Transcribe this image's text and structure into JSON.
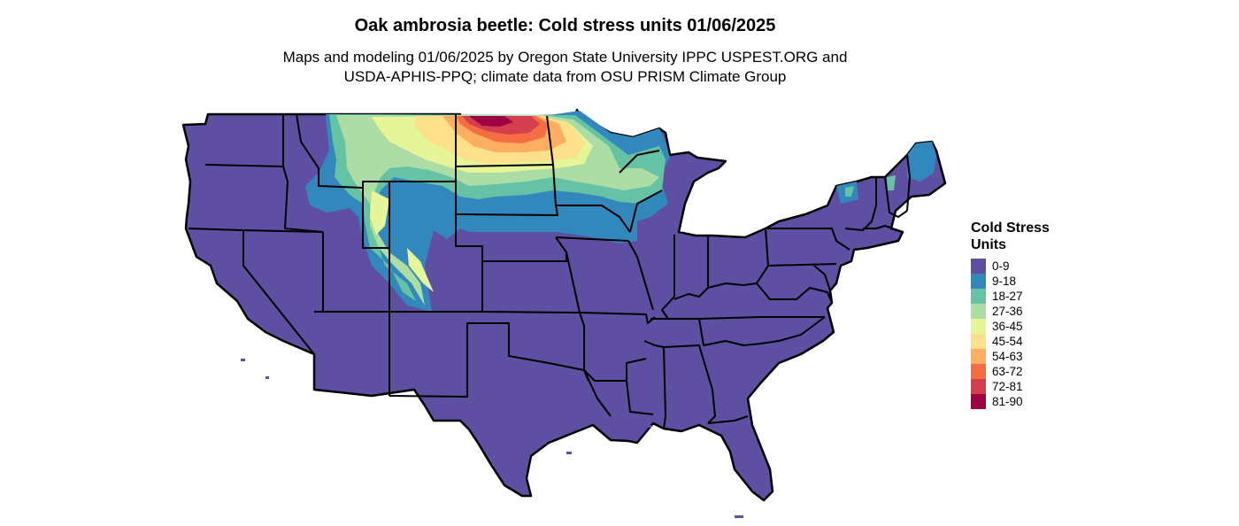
{
  "title": "Oak ambrosia beetle: Cold stress units 01/06/2025",
  "subtitle": {
    "line1": "Maps and modeling 01/06/2025 by Oregon State University IPPC USPEST.ORG and",
    "line2": "USDA-APHIS-PPQ; climate data from OSU PRISM Climate Group"
  },
  "legend": {
    "title_line1": "Cold Stress",
    "title_line2": "Units",
    "items": [
      {
        "label": "0-9",
        "color": "#5e4fa2"
      },
      {
        "label": "9-18",
        "color": "#3288bd"
      },
      {
        "label": "18-27",
        "color": "#66c2a5"
      },
      {
        "label": "27-36",
        "color": "#abdda4"
      },
      {
        "label": "36-45",
        "color": "#e6f598"
      },
      {
        "label": "45-54",
        "color": "#fee08b"
      },
      {
        "label": "54-63",
        "color": "#fdae61"
      },
      {
        "label": "63-72",
        "color": "#f46d43"
      },
      {
        "label": "72-81",
        "color": "#d53e4f"
      },
      {
        "label": "81-90",
        "color": "#9e0142"
      }
    ]
  }
}
